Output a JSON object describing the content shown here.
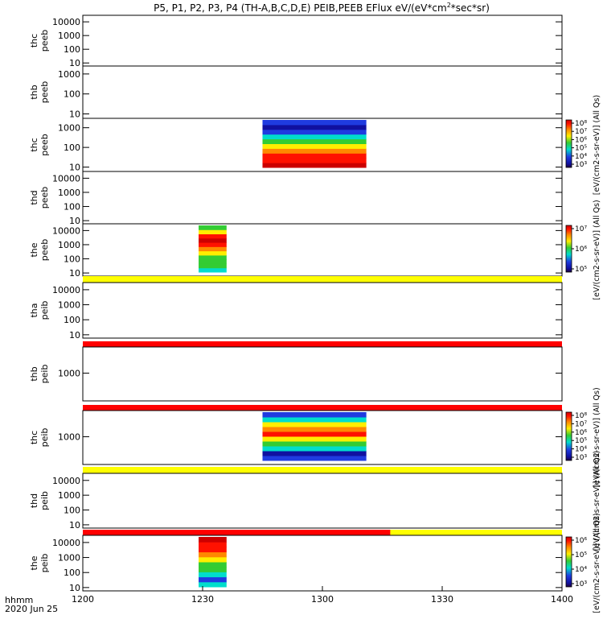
{
  "title": "P5, P1, P2, P3, P4 (TH-A,B,C,D,E) PEIB,PEEB EFlux eV/(eV*cm",
  "title_sup": "2",
  "title_tail": "*sec*sr)",
  "colors": {
    "dark_red": "#cc0000",
    "red": "#ff1100",
    "orange": "#ff8800",
    "yellow": "#ffee00",
    "green": "#33cc33",
    "cyan": "#00ddcc",
    "blue": "#1f3be0",
    "navy": "#1010a0",
    "flag_yellow": "#ffff00",
    "flag_red": "#ff0000"
  },
  "chart_data": {
    "type": "heatmap",
    "x_label": "hhmm",
    "date_label": "2020 Jun 25",
    "x_ticks": [
      "1200",
      "1230",
      "1300",
      "1330",
      "1400"
    ],
    "x_range": [
      "1200",
      "1400"
    ],
    "panels": [
      {
        "ylabel_line1": "thc",
        "ylabel_line2": "peeb",
        "y_ticks": [
          "10000",
          "1000",
          "100",
          "10"
        ],
        "ylim": [
          6,
          30000
        ],
        "scale": "log",
        "data": []
      },
      {
        "ylabel_line1": "thb",
        "ylabel_line2": "peeb",
        "y_ticks": [
          "1000",
          "100",
          "10"
        ],
        "ylim": [
          6,
          2500
        ],
        "scale": "log",
        "data": []
      },
      {
        "ylabel_line1": "thc",
        "ylabel_line2": "peeb",
        "y_ticks": [
          "1000",
          "100",
          "10"
        ],
        "ylim": [
          6,
          3000
        ],
        "scale": "log",
        "data": [
          {
            "start": "1245",
            "end": "1311"
          }
        ],
        "colorbar_ticks": [
          "10⁸",
          "10⁷",
          "10⁶",
          "10⁵",
          "10⁴",
          "10³"
        ],
        "colorbar_label": "[eV/(cm2-s-sr-eV)] (All Qs)"
      },
      {
        "ylabel_line1": "thd",
        "ylabel_line2": "peeb",
        "y_ticks": [
          "10000",
          "1000",
          "100",
          "10"
        ],
        "ylim": [
          6,
          30000
        ],
        "scale": "log",
        "data": []
      },
      {
        "ylabel_line1": "the",
        "ylabel_line2": "peeb",
        "y_ticks": [
          "10000",
          "1000",
          "100",
          "10"
        ],
        "ylim": [
          6,
          30000
        ],
        "scale": "log",
        "data": [
          {
            "start": "1229",
            "end": "1236"
          }
        ],
        "colorbar_ticks": [
          "10⁷",
          "10⁶",
          "10⁵"
        ],
        "colorbar_label": "[eV/(cm2-s-sr-eV)] (All Qs)"
      },
      {
        "ylabel_line1": "tha",
        "ylabel_line2": "peib",
        "y_ticks": [
          "10000",
          "1000",
          "100",
          "10"
        ],
        "ylim": [
          6,
          30000
        ],
        "scale": "log",
        "flag_bar": [
          {
            "start": "1200",
            "end": "1400",
            "color": "flag_yellow"
          }
        ],
        "data": []
      },
      {
        "ylabel_line1": "thb",
        "ylabel_line2": "peib",
        "y_ticks": [
          "1000"
        ],
        "ylim": [
          150,
          6000
        ],
        "scale": "log",
        "flag_bar": [
          {
            "start": "1200",
            "end": "1400",
            "color": "flag_red"
          }
        ],
        "data": []
      },
      {
        "ylabel_line1": "thc",
        "ylabel_line2": "peib",
        "y_ticks": [
          "1000"
        ],
        "ylim": [
          150,
          6000
        ],
        "scale": "log",
        "flag_bar": [
          {
            "start": "1200",
            "end": "1400",
            "color": "flag_red"
          }
        ],
        "data": [
          {
            "start": "1245",
            "end": "1311"
          }
        ],
        "colorbar_ticks": [
          "10⁸",
          "10⁷",
          "10⁶",
          "10⁵",
          "10⁴",
          "10³"
        ],
        "colorbar_label": "[eV/(cm2-s-sr-eV)] (All Qs)"
      },
      {
        "ylabel_line1": "thd",
        "ylabel_line2": "peib",
        "y_ticks": [
          "10000",
          "1000",
          "100",
          "10"
        ],
        "ylim": [
          6,
          30000
        ],
        "scale": "log",
        "flag_bar": [
          {
            "start": "1200",
            "end": "1400",
            "color": "flag_yellow"
          }
        ],
        "data": [],
        "colorbar_label": "[eV/(cm2-s-sr-eV)] (All Qs)"
      },
      {
        "ylabel_line1": "the",
        "ylabel_line2": "peib",
        "y_ticks": [
          "10000",
          "1000",
          "100",
          "10"
        ],
        "ylim": [
          6,
          30000
        ],
        "scale": "log",
        "flag_bar": [
          {
            "start": "1200",
            "end": "1317",
            "color": "flag_red"
          },
          {
            "start": "1317",
            "end": "1400",
            "color": "flag_yellow"
          }
        ],
        "data": [
          {
            "start": "1229",
            "end": "1236"
          }
        ],
        "colorbar_ticks": [
          "10⁶",
          "10⁵",
          "10⁴",
          "10³"
        ],
        "colorbar_label": "[eV/(cm2-s-sr-eV)] (All Qs)"
      }
    ]
  }
}
